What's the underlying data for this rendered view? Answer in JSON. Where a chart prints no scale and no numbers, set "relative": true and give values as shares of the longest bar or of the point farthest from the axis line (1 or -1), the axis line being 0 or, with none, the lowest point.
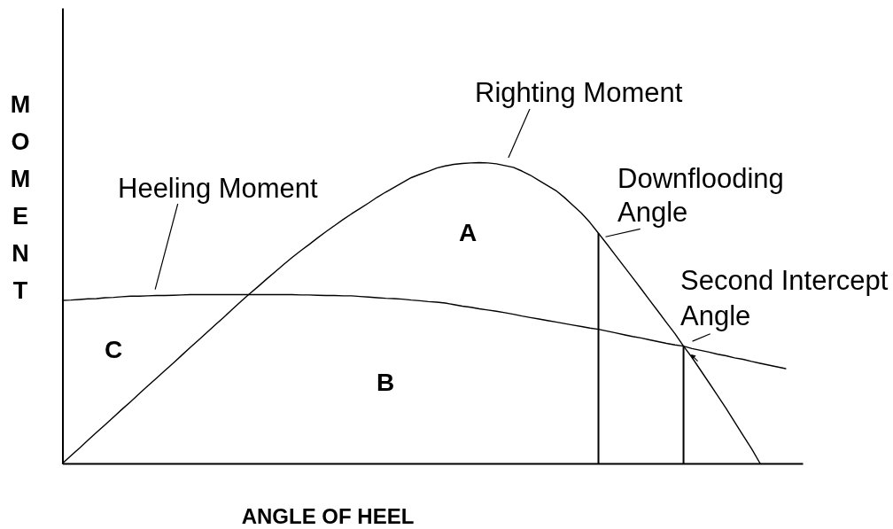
{
  "chart_data": {
    "type": "line",
    "xlabel": "ANGLE OF HEEL",
    "ylabel": "MOMENT",
    "relative": true,
    "categories": [
      null,
      null,
      null,
      null,
      null,
      null,
      null,
      null,
      null,
      null,
      null,
      null,
      null,
      null,
      null,
      null,
      null,
      null,
      null,
      null,
      null,
      null,
      null,
      null,
      null,
      null,
      null,
      null,
      null,
      null,
      null,
      null,
      null,
      null,
      null,
      null,
      null,
      null,
      null,
      null,
      null,
      null,
      null,
      null,
      null,
      null,
      null,
      null,
      null,
      null,
      null,
      null,
      null,
      null,
      null,
      null,
      null,
      null,
      null,
      null,
      null,
      null,
      null,
      null,
      null,
      null,
      null,
      null,
      null,
      null,
      null,
      null,
      null,
      null,
      null,
      null,
      null,
      null,
      null,
      null,
      null,
      null,
      null,
      null,
      null,
      null,
      null,
      null
    ],
    "series": [
      {
        "name": "Righting Moment",
        "color": "#000000",
        "values": [
          0,
          0.026,
          0.051,
          0.077,
          0.103,
          0.128,
          0.154,
          0.18,
          0.205,
          0.231,
          0.257,
          0.282,
          0.308,
          0.333,
          0.359,
          0.385,
          0.41,
          0.436,
          0.462,
          0.487,
          0.513,
          0.539,
          0.564,
          0.588,
          0.613,
          0.637,
          0.661,
          0.685,
          0.707,
          0.728,
          0.75,
          0.771,
          0.791,
          0.811,
          0.83,
          0.848,
          0.866,
          0.885,
          0.902,
          0.918,
          0.934,
          0.95,
          0.961,
          0.971,
          0.982,
          0.989,
          0.994,
          0.997,
          0.999,
          1,
          0.999,
          0.996,
          0.99,
          0.984,
          0.972,
          0.958,
          0.941,
          0.924,
          0.907,
          0.884,
          0.858,
          0.832,
          0.801,
          0.765,
          0.729,
          0.692,
          0.655,
          0.618,
          0.581,
          0.543,
          0.506,
          0.468,
          0.431,
          0.39,
          0.352,
          0.31,
          0.268,
          0.226,
          0.183,
          0.138,
          0.093,
          0.049,
          0,
          null,
          null,
          null,
          null,
          null
        ]
      },
      {
        "name": "Heeling Moment",
        "color": "#000000",
        "values": [
          0.542,
          0.543,
          0.545,
          0.547,
          0.548,
          0.551,
          0.552,
          0.554,
          0.556,
          0.556,
          0.557,
          0.558,
          0.558,
          0.559,
          0.56,
          0.561,
          0.561,
          0.561,
          0.561,
          0.561,
          0.561,
          0.561,
          0.561,
          0.561,
          0.561,
          0.561,
          0.561,
          0.561,
          0.56,
          0.56,
          0.559,
          0.558,
          0.558,
          0.557,
          0.557,
          0.555,
          0.553,
          0.551,
          0.549,
          0.548,
          0.546,
          0.543,
          0.541,
          0.538,
          0.536,
          0.533,
          0.528,
          0.523,
          0.519,
          0.514,
          0.51,
          0.506,
          0.501,
          0.496,
          0.49,
          0.485,
          0.48,
          0.475,
          0.47,
          0.465,
          0.46,
          0.455,
          0.45,
          0.446,
          0.44,
          0.434,
          0.428,
          0.422,
          0.417,
          0.411,
          0.405,
          0.399,
          0.394,
          0.39,
          0.382,
          0.376,
          0.37,
          0.363,
          0.358,
          0.351,
          0.346,
          0.339,
          0.333,
          0.327,
          0.321,
          0.315,
          null,
          null
        ]
      }
    ],
    "annotations": [
      "Downflooding Angle",
      "Second Intercept Angle",
      "A",
      "B",
      "C"
    ]
  }
}
